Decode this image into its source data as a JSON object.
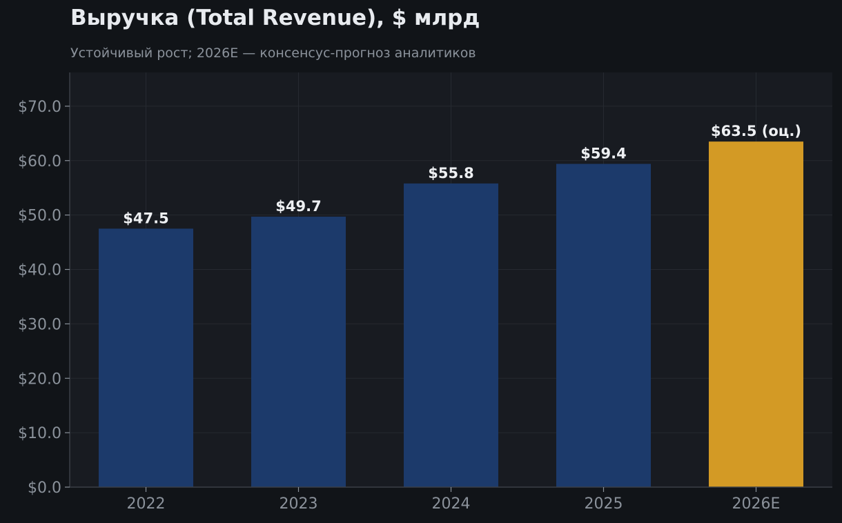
{
  "chart_data": {
    "type": "bar",
    "title": "Выручка (Total Revenue), $ млрд",
    "subtitle": "Устойчивый рост; 2026E — консенсус-прогноз аналитиков",
    "categories": [
      "2022",
      "2023",
      "2024",
      "2025",
      "2026E"
    ],
    "values": [
      47.5,
      49.7,
      55.8,
      59.4,
      63.5
    ],
    "data_labels": [
      "$47.5",
      "$49.7",
      "$55.8",
      "$59.4",
      "$63.5 (оц.)"
    ],
    "bar_kind": [
      "actual",
      "actual",
      "actual",
      "actual",
      "estimate"
    ],
    "y_ticks": [
      0,
      10,
      20,
      30,
      40,
      50,
      60,
      70
    ],
    "y_tick_labels": [
      "$0.0",
      "$10.0",
      "$20.0",
      "$30.0",
      "$40.0",
      "$50.0",
      "$60.0",
      "$70.0"
    ],
    "ylim": [
      0,
      76.2
    ],
    "grid": true,
    "legend": false,
    "colors": {
      "page_background": "#111418",
      "plot_background": "#181b21",
      "actual_bar": "#1c3a6b",
      "estimate_bar": "#d39a25",
      "grid": "#262a31",
      "axis": "#3a3f47",
      "title": "#e8ebef",
      "muted_text": "#8b929b",
      "data_label": "#eef0f3"
    }
  }
}
